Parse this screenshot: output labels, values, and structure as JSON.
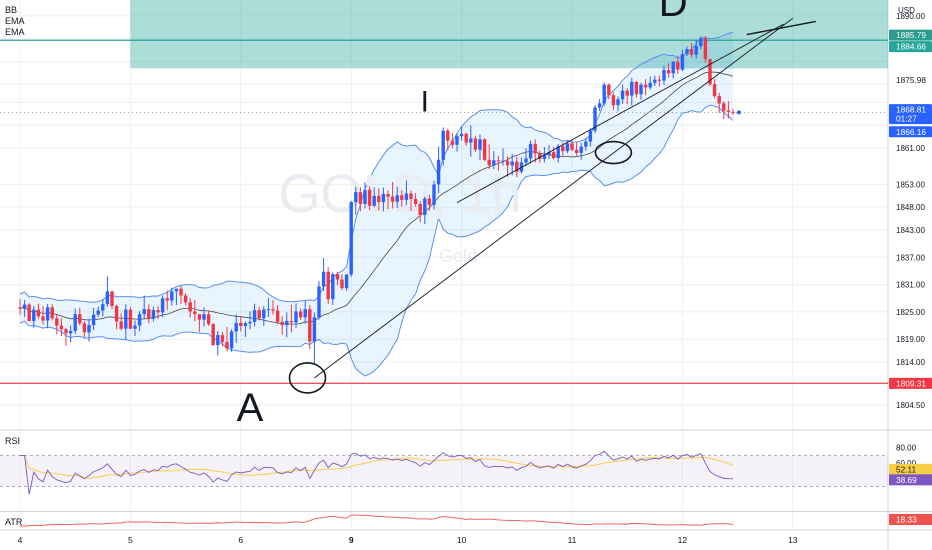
{
  "header": {
    "indicators": [
      "BB",
      "EMA",
      "EMA"
    ],
    "currency": "USD",
    "watermark": "GOLD, 1h",
    "watermark_sub": "Gold"
  },
  "colors": {
    "up": "#2962ff",
    "down": "#f23645",
    "bb": "#5b8ff0",
    "bb_fill": "rgba(33,150,243,0.10)",
    "zone": "rgba(38,166,154,0.38)",
    "zone_line": "#26a69a",
    "support": "#f23645",
    "rsi": "#7e57c2",
    "rsi_ma": "#f7cf47",
    "atr": "#ef5350",
    "grid": "#eef0f3",
    "axis_text": "#131722"
  },
  "chart_data": [
    {
      "type": "candlestick",
      "title": "GOLD, 1h",
      "ylabel": "USD",
      "ylim": [
        1799.5,
        1893.5
      ],
      "y_ticks": [
        1804.5,
        1809.5,
        1814,
        1819,
        1825,
        1831,
        1837,
        1843,
        1848,
        1853,
        1861,
        1866,
        1871,
        1875,
        1880,
        1885,
        1890
      ],
      "y_tick_labels": [
        "1804.50",
        "",
        "1814.00",
        "1819.00",
        "1825.00",
        "1831.00",
        "1837.00",
        "1843.00",
        "1848.00",
        "1853.00",
        "1861.00",
        "",
        "",
        "",
        "",
        "",
        "1890.00"
      ],
      "x_tick_labels": [
        "4",
        "5",
        "6",
        "9",
        "10",
        "11",
        "12",
        "13"
      ],
      "x_tick_bars": [
        0,
        24,
        48,
        72,
        96,
        120,
        144,
        168
      ],
      "ohlc": [
        [
          1826.0,
          1827.8,
          1824.4,
          1825.7
        ],
        [
          1825.7,
          1827.6,
          1823.9,
          1826.6
        ],
        [
          1826.6,
          1826.9,
          1822.9,
          1823.0
        ],
        [
          1823.0,
          1826.3,
          1821.4,
          1825.5
        ],
        [
          1825.5,
          1826.8,
          1823.5,
          1824.0
        ],
        [
          1824.0,
          1826.3,
          1822.2,
          1823.1
        ],
        [
          1823.1,
          1826.7,
          1821.4,
          1826.0
        ],
        [
          1826.0,
          1826.7,
          1823.1,
          1823.6
        ],
        [
          1823.6,
          1824.5,
          1820.1,
          1822.0
        ],
        [
          1822.0,
          1823.6,
          1819.7,
          1821.2
        ],
        [
          1821.2,
          1821.5,
          1817.6,
          1820.3
        ],
        [
          1820.3,
          1822.0,
          1818.3,
          1820.8
        ],
        [
          1820.8,
          1825.7,
          1820.1,
          1824.5
        ],
        [
          1824.5,
          1825.9,
          1822.0,
          1822.5
        ],
        [
          1822.5,
          1823.0,
          1819.4,
          1820.5
        ],
        [
          1820.5,
          1823.5,
          1818.5,
          1822.1
        ],
        [
          1822.1,
          1825.9,
          1821.0,
          1824.4
        ],
        [
          1824.4,
          1826.2,
          1823.9,
          1825.3
        ],
        [
          1825.3,
          1827.8,
          1824.0,
          1826.7
        ],
        [
          1826.7,
          1832.8,
          1826.1,
          1829.5
        ],
        [
          1829.5,
          1829.6,
          1825.6,
          1826.3
        ],
        [
          1826.3,
          1826.6,
          1821.2,
          1822.9
        ],
        [
          1822.9,
          1824.7,
          1820.9,
          1821.3
        ],
        [
          1821.3,
          1826.7,
          1818.8,
          1825.5
        ],
        [
          1825.5,
          1826.1,
          1821.2,
          1821.3
        ],
        [
          1821.3,
          1823.1,
          1819.7,
          1822.0
        ],
        [
          1822.0,
          1825.2,
          1820.8,
          1824.5
        ],
        [
          1824.5,
          1828.6,
          1823.4,
          1825.6
        ],
        [
          1825.6,
          1826.6,
          1822.5,
          1823.5
        ],
        [
          1823.5,
          1826.2,
          1822.9,
          1825.4
        ],
        [
          1825.4,
          1826.3,
          1823.5,
          1824.9
        ],
        [
          1824.9,
          1828.6,
          1823.8,
          1828.0
        ],
        [
          1828.0,
          1829.7,
          1825.4,
          1827.5
        ],
        [
          1827.5,
          1830.3,
          1826.4,
          1829.5
        ],
        [
          1829.5,
          1830.1,
          1826.5,
          1830.1
        ],
        [
          1830.1,
          1830.7,
          1826.7,
          1828.6
        ],
        [
          1828.6,
          1829.1,
          1826.4,
          1827.1
        ],
        [
          1827.1,
          1828.0,
          1823.8,
          1825.1
        ],
        [
          1825.1,
          1827.6,
          1823.0,
          1824.5
        ],
        [
          1824.5,
          1824.5,
          1820.6,
          1823.3
        ],
        [
          1823.3,
          1826.0,
          1821.8,
          1824.5
        ],
        [
          1824.5,
          1825.3,
          1821.9,
          1822.3
        ],
        [
          1822.3,
          1822.6,
          1817.6,
          1817.7
        ],
        [
          1817.7,
          1820.8,
          1815.4,
          1819.9
        ],
        [
          1819.9,
          1820.6,
          1817.4,
          1818.4
        ],
        [
          1818.4,
          1821.7,
          1816.3,
          1817.0
        ],
        [
          1817.0,
          1821.2,
          1816.2,
          1820.7
        ],
        [
          1820.7,
          1824.5,
          1818.2,
          1822.6
        ],
        [
          1822.6,
          1824.1,
          1820.7,
          1821.9
        ],
        [
          1821.9,
          1822.9,
          1819.5,
          1822.5
        ],
        [
          1822.5,
          1825.1,
          1821.2,
          1822.8
        ],
        [
          1822.8,
          1826.8,
          1821.8,
          1825.4
        ],
        [
          1825.4,
          1826.1,
          1823.1,
          1823.6
        ],
        [
          1823.6,
          1826.3,
          1821.9,
          1825.5
        ],
        [
          1825.5,
          1828.1,
          1823.9,
          1825.6
        ],
        [
          1825.6,
          1827.6,
          1824.4,
          1825.3
        ],
        [
          1825.3,
          1826.5,
          1822.3,
          1822.8
        ],
        [
          1822.8,
          1824.0,
          1820.0,
          1822.1
        ],
        [
          1822.1,
          1824.9,
          1819.4,
          1823.0
        ],
        [
          1823.0,
          1826.6,
          1820.5,
          1822.7
        ],
        [
          1822.7,
          1826.9,
          1821.5,
          1825.1
        ],
        [
          1825.1,
          1825.8,
          1823.2,
          1823.8
        ],
        [
          1823.8,
          1827.4,
          1822.4,
          1825.6
        ],
        [
          1825.6,
          1826.5,
          1816.9,
          1818.5
        ],
        [
          1818.5,
          1824.9,
          1813.6,
          1823.8
        ],
        [
          1823.8,
          1831.8,
          1823.3,
          1830.6
        ],
        [
          1830.6,
          1836.8,
          1829.6,
          1833.8
        ],
        [
          1833.8,
          1834.8,
          1826.7,
          1827.8
        ],
        [
          1827.8,
          1833.7,
          1826.5,
          1833.3
        ],
        [
          1833.3,
          1833.8,
          1830.8,
          1832.1
        ],
        [
          1832.1,
          1833.3,
          1829.8,
          1830.2
        ],
        [
          1830.2,
          1833.3,
          1829.6,
          1833.2
        ],
        [
          1833.2,
          1849.4,
          1832.7,
          1849.1
        ],
        [
          1849.1,
          1852.4,
          1846.3,
          1851.3
        ],
        [
          1851.3,
          1852.4,
          1847.1,
          1848.7
        ],
        [
          1848.7,
          1853.5,
          1847.7,
          1851.8
        ],
        [
          1851.8,
          1852.5,
          1847.4,
          1848.3
        ],
        [
          1848.3,
          1852.4,
          1848.0,
          1850.5
        ],
        [
          1850.5,
          1852.1,
          1847.3,
          1849.1
        ],
        [
          1849.1,
          1852.3,
          1847.1,
          1850.9
        ],
        [
          1850.9,
          1851.7,
          1847.6,
          1850.3
        ],
        [
          1850.3,
          1853.5,
          1847.7,
          1849.2
        ],
        [
          1849.2,
          1852.5,
          1847.8,
          1850.6
        ],
        [
          1850.6,
          1851.7,
          1848.1,
          1849.6
        ],
        [
          1849.6,
          1853.9,
          1848.4,
          1851.0
        ],
        [
          1851.0,
          1851.7,
          1847.2,
          1849.8
        ],
        [
          1849.8,
          1851.1,
          1848.1,
          1848.7
        ],
        [
          1848.7,
          1849.3,
          1844.7,
          1846.3
        ],
        [
          1846.3,
          1850.3,
          1844.3,
          1849.9
        ],
        [
          1849.9,
          1850.7,
          1847.2,
          1848.5
        ],
        [
          1848.5,
          1853.8,
          1847.5,
          1853.0
        ],
        [
          1853.0,
          1861.3,
          1851.1,
          1858.4
        ],
        [
          1858.4,
          1865.5,
          1857.2,
          1864.8
        ],
        [
          1864.8,
          1865.2,
          1860.5,
          1862.6
        ],
        [
          1862.6,
          1864.2,
          1861.0,
          1861.7
        ],
        [
          1861.7,
          1864.3,
          1860.2,
          1863.6
        ],
        [
          1863.6,
          1865.7,
          1862.6,
          1864.1
        ],
        [
          1864.1,
          1864.4,
          1861.5,
          1862.2
        ],
        [
          1862.2,
          1866.0,
          1859.1,
          1863.1
        ],
        [
          1863.1,
          1863.7,
          1860.1,
          1860.6
        ],
        [
          1860.6,
          1864.0,
          1858.3,
          1862.9
        ],
        [
          1862.9,
          1863.2,
          1858.1,
          1858.4
        ],
        [
          1858.4,
          1861.8,
          1856.4,
          1857.2
        ],
        [
          1857.2,
          1860.3,
          1856.3,
          1858.3
        ],
        [
          1858.3,
          1859.3,
          1856.0,
          1858.1
        ],
        [
          1858.1,
          1860.9,
          1857.1,
          1858.2
        ],
        [
          1858.2,
          1859.2,
          1854.7,
          1857.2
        ],
        [
          1857.2,
          1859.7,
          1855.0,
          1858.0
        ],
        [
          1858.0,
          1859.1,
          1854.6,
          1855.8
        ],
        [
          1855.8,
          1858.9,
          1855.4,
          1857.8
        ],
        [
          1857.8,
          1860.9,
          1857.0,
          1858.7
        ],
        [
          1858.7,
          1862.6,
          1857.6,
          1861.9
        ],
        [
          1861.9,
          1862.9,
          1857.8,
          1859.8
        ],
        [
          1859.8,
          1860.4,
          1857.8,
          1858.6
        ],
        [
          1858.6,
          1861.2,
          1857.8,
          1859.5
        ],
        [
          1859.5,
          1861.6,
          1858.6,
          1860.1
        ],
        [
          1860.1,
          1861.3,
          1858.5,
          1858.8
        ],
        [
          1858.8,
          1861.9,
          1857.8,
          1861.4
        ],
        [
          1861.4,
          1862.2,
          1859.3,
          1860.3
        ],
        [
          1860.3,
          1862.6,
          1859.9,
          1862.0
        ],
        [
          1862.0,
          1862.9,
          1860.3,
          1860.6
        ],
        [
          1860.6,
          1862.2,
          1859.3,
          1859.9
        ],
        [
          1859.9,
          1862.1,
          1858.4,
          1861.3
        ],
        [
          1861.3,
          1863.1,
          1860.4,
          1862.4
        ],
        [
          1862.4,
          1865.3,
          1861.3,
          1864.8
        ],
        [
          1864.8,
          1870.4,
          1864.2,
          1869.9
        ],
        [
          1869.9,
          1871.7,
          1869.1,
          1870.8
        ],
        [
          1870.8,
          1875.4,
          1870.2,
          1874.9
        ],
        [
          1874.9,
          1875.2,
          1871.7,
          1872.6
        ],
        [
          1872.6,
          1873.2,
          1869.3,
          1870.4
        ],
        [
          1870.4,
          1872.3,
          1869.0,
          1871.7
        ],
        [
          1871.7,
          1874.9,
          1870.7,
          1873.6
        ],
        [
          1873.6,
          1874.1,
          1870.6,
          1872.5
        ],
        [
          1872.5,
          1876.4,
          1870.3,
          1875.5
        ],
        [
          1875.5,
          1875.7,
          1872.1,
          1872.8
        ],
        [
          1872.8,
          1875.3,
          1871.6,
          1874.9
        ],
        [
          1874.9,
          1876.1,
          1872.6,
          1874.3
        ],
        [
          1874.3,
          1876.7,
          1873.8,
          1875.3
        ],
        [
          1875.3,
          1876.9,
          1874.6,
          1876.0
        ],
        [
          1876.0,
          1876.9,
          1874.5,
          1875.8
        ],
        [
          1875.8,
          1879.1,
          1874.9,
          1878.1
        ],
        [
          1878.1,
          1879.6,
          1876.4,
          1877.4
        ],
        [
          1877.4,
          1880.1,
          1876.3,
          1879.9
        ],
        [
          1879.9,
          1881.3,
          1877.3,
          1878.2
        ],
        [
          1878.2,
          1882.6,
          1877.9,
          1881.6
        ],
        [
          1881.6,
          1883.3,
          1881.2,
          1882.7
        ],
        [
          1882.7,
          1884.1,
          1880.8,
          1881.5
        ],
        [
          1881.5,
          1884.8,
          1880.6,
          1883.4
        ],
        [
          1883.4,
          1885.5,
          1882.7,
          1885.1
        ],
        [
          1885.1,
          1885.6,
          1879.7,
          1880.5
        ],
        [
          1880.5,
          1880.6,
          1874.6,
          1875.0
        ],
        [
          1875.0,
          1876.1,
          1871.9,
          1872.4
        ],
        [
          1872.4,
          1873.1,
          1868.7,
          1870.8
        ],
        [
          1870.8,
          1871.3,
          1867.4,
          1869.2
        ],
        [
          1869.2,
          1871.3,
          1867.5,
          1868.9
        ],
        [
          1868.9,
          1869.6,
          1868.3,
          1868.8
        ]
      ],
      "annotations": [
        {
          "kind": "text",
          "label": "A",
          "bar": 50,
          "price": 1801
        },
        {
          "kind": "text",
          "label": "I",
          "bar": 88,
          "price": 1869
        },
        {
          "kind": "text",
          "label": "D",
          "bar": 142,
          "price": 1890
        }
      ],
      "price_levels": [
        {
          "price": 1885.79,
          "label": "1885.79",
          "kind": "zone_top"
        },
        {
          "price": 1884.66,
          "label": "1884.66",
          "kind": "zone_line"
        },
        {
          "price": 1875.98,
          "label": "1875.98",
          "kind": "level"
        },
        {
          "price": 1868.81,
          "label": "1868.81",
          "kind": "last",
          "countdown": "01:27"
        },
        {
          "price": 1866.16,
          "label": "1866.16",
          "kind": "bb_lower"
        },
        {
          "price": 1809.31,
          "label": "1809.31",
          "kind": "support"
        }
      ],
      "zone": {
        "top": 1893.5,
        "bottom": 1878.5,
        "start_bar": 24
      }
    },
    {
      "type": "line",
      "title": "RSI",
      "ylim": [
        0,
        100
      ],
      "y_tick_labels": [
        "80.00",
        "60.00"
      ],
      "levels": [
        70,
        30
      ],
      "last_values": {
        "rsi_ma": "52.11",
        "rsi": "38.69"
      }
    },
    {
      "type": "line",
      "title": "ATR",
      "last_value": "18.33"
    }
  ]
}
